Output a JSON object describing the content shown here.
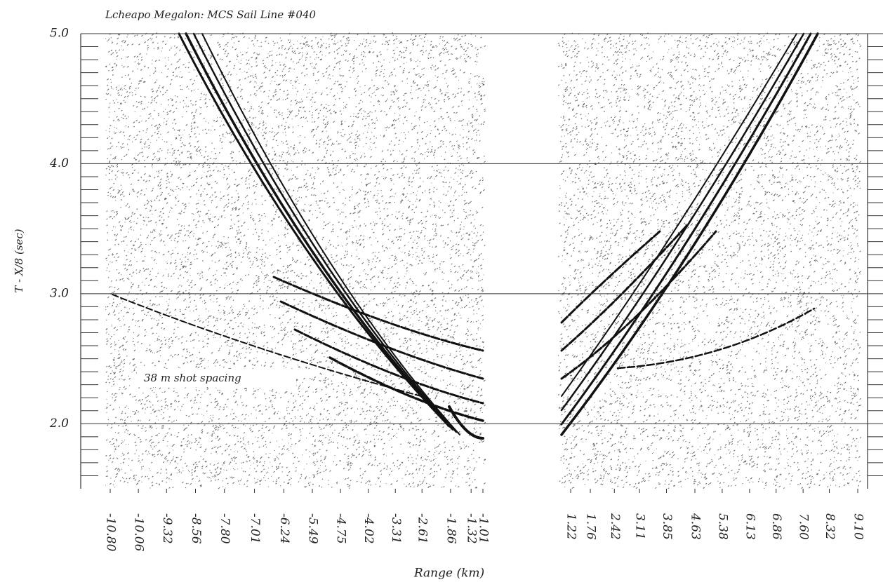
{
  "chart_data": {
    "type": "seismic-section",
    "title": "Lcheapo Megalon: MCS Sail Line #040",
    "ylabel": "T - X/8 (sec)",
    "xlabel": "Range (km)",
    "annotation": "38 m shot spacing",
    "ylim": [
      1.5,
      5.0
    ],
    "yticks": [
      {
        "value": 2,
        "label": "2.0"
      },
      {
        "value": 3,
        "label": "3.0"
      },
      {
        "value": 4,
        "label": "4.0"
      },
      {
        "value": 5,
        "label": "5.0"
      }
    ],
    "yminorticks": [
      1.6,
      1.7,
      1.8,
      1.9,
      2.1,
      2.2,
      2.3,
      2.4,
      2.5,
      2.6,
      2.7,
      2.8,
      2.9,
      3.1,
      3.2,
      3.3,
      3.4,
      3.5,
      3.6,
      3.7,
      3.8,
      3.9,
      4.1,
      4.2,
      4.3,
      4.4,
      4.5,
      4.6,
      4.7,
      4.8,
      4.9
    ],
    "grid": true,
    "panels": [
      {
        "xlim": [
          -10.8,
          -1.01
        ],
        "xticks": [
          {
            "value": -10.8,
            "label": "-10.80"
          },
          -10.06,
          -9.32,
          -8.56,
          {
            "value": -7.8,
            "label": "-7.80"
          },
          -7.01,
          -6.24,
          -5.49,
          -4.75,
          -4.02,
          -3.31,
          -2.61,
          -1.86,
          -1.32,
          -1.01
        ]
      },
      {
        "xlim": [
          1.22,
          9.1
        ],
        "xticks": [
          1.22,
          1.76,
          2.42,
          3.11,
          3.85,
          4.63,
          5.38,
          6.13,
          6.86,
          {
            "value": 7.6,
            "label": "7.60"
          },
          8.32,
          {
            "value": 9.1,
            "label": "9.10"
          }
        ]
      }
    ]
  }
}
